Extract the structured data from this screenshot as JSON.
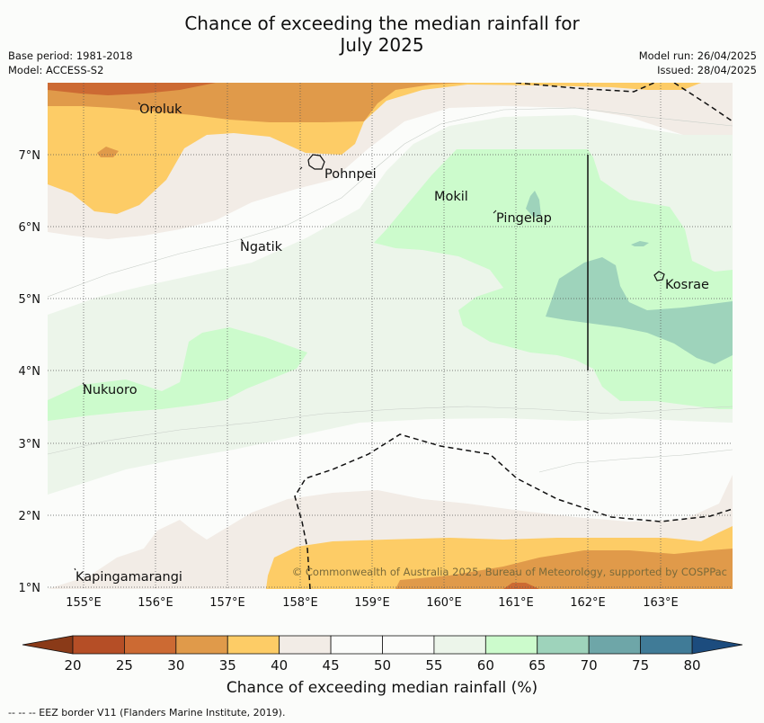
{
  "title": {
    "line1": "Chance of exceeding the median rainfall for",
    "line2": "July 2025"
  },
  "meta": {
    "base_period": "Base period: 1981-2018",
    "model": "Model: ACCESS-S2",
    "model_run": "Model run: 26/04/2025",
    "issued": "Issued: 28/04/2025"
  },
  "map": {
    "lon_labels": [
      "155°E",
      "156°E",
      "157°E",
      "158°E",
      "159°E",
      "160°E",
      "161°E",
      "162°E",
      "163°E"
    ],
    "lat_labels": [
      "7°N",
      "6°N",
      "5°N",
      "4°N",
      "3°N",
      "2°N",
      "1°N"
    ],
    "places": [
      {
        "name": "Oroluk"
      },
      {
        "name": "Pohnpei"
      },
      {
        "name": "Mokil"
      },
      {
        "name": "Pingelap"
      },
      {
        "name": "Ngatik"
      },
      {
        "name": "Kosrae"
      },
      {
        "name": "Nukuoro"
      },
      {
        "name": "Kapingamarangi"
      }
    ],
    "copyright": "© Commonwealth of Australia 2025, Bureau of Meteorology, supported by COSPPac"
  },
  "colorbar": {
    "ticks": [
      "20",
      "25",
      "30",
      "35",
      "40",
      "45",
      "50",
      "55",
      "60",
      "65",
      "70",
      "75",
      "80"
    ],
    "colors": {
      "under": "#8a3a18",
      "c20": "#b54e26",
      "c25": "#cc6a33",
      "c30": "#e09a4a",
      "c35": "#fdcc66",
      "c40": "#f2ece6",
      "c45": "#fbfcfa",
      "c50": "#fbfcfa",
      "c55": "#ecf5ea",
      "c60": "#ccfbcc",
      "c65": "#9ed3bb",
      "c70": "#6ea6a8",
      "c75": "#407b97",
      "over": "#1c4c7e"
    },
    "label": "Chance of exceeding median rainfall (%)"
  },
  "footer": "-- -- -- EEZ border V11 (Flanders Marine Institute, 2019)."
}
